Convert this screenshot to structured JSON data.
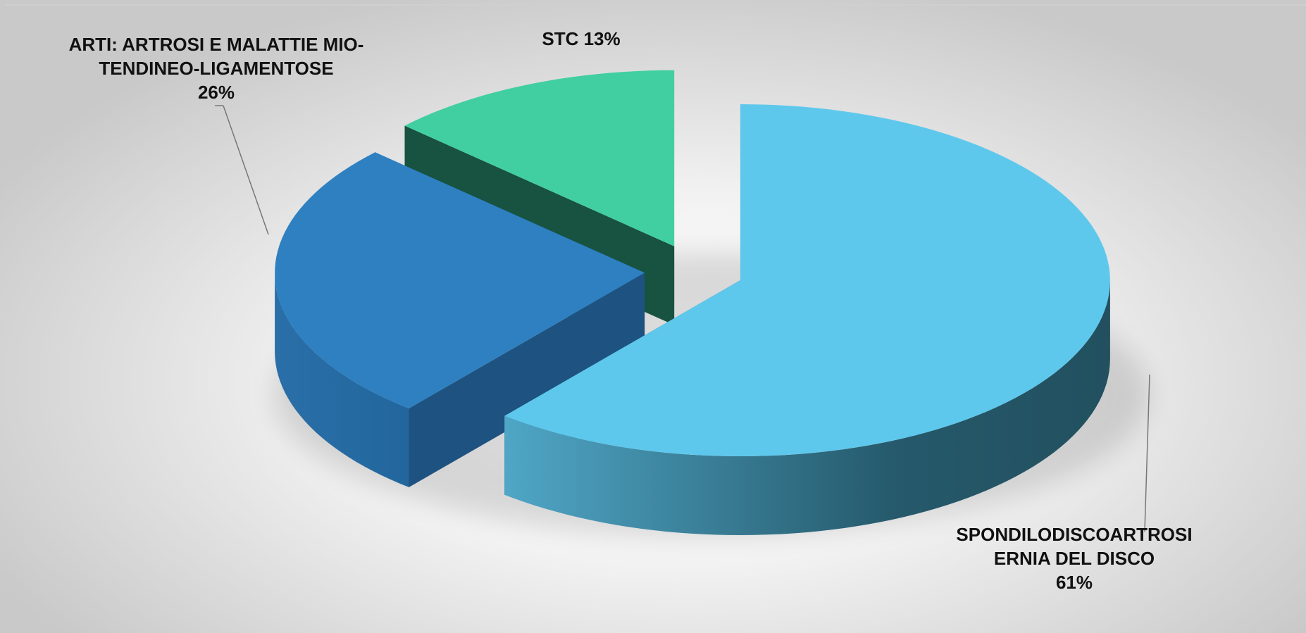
{
  "chart_data": {
    "type": "pie",
    "categories": [
      "SPONDILODISCOARTROSI ERNIA DEL DISCO",
      "ARTI: ARTROSI E MALATTIE MIO-TENDINEO-LIGAMENTOSE",
      "STC"
    ],
    "values": [
      61,
      26,
      13
    ],
    "value_labels": [
      "61%",
      "26%",
      "13%"
    ],
    "colors": [
      "#5ec8ec",
      "#2e80c1",
      "#41cfa1"
    ]
  }
}
